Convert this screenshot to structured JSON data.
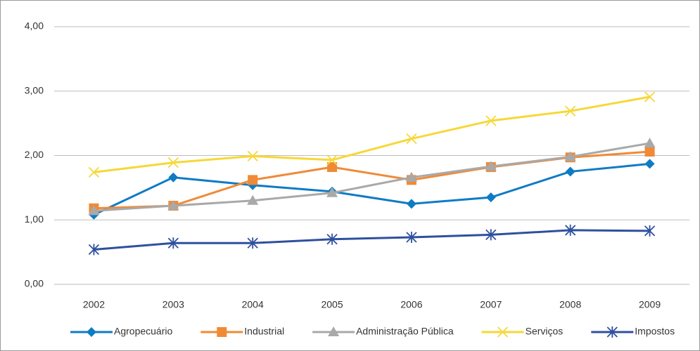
{
  "chart_data": {
    "type": "line",
    "categories": [
      "2002",
      "2003",
      "2004",
      "2005",
      "2006",
      "2007",
      "2008",
      "2009"
    ],
    "series": [
      {
        "name": "Agropecuário",
        "color": "#0f7bc4",
        "marker": "diamond",
        "values": [
          1.08,
          1.66,
          1.54,
          1.44,
          1.25,
          1.35,
          1.75,
          1.87
        ]
      },
      {
        "name": "Industrial",
        "color": "#f08a36",
        "marker": "square",
        "values": [
          1.18,
          1.22,
          1.62,
          1.82,
          1.62,
          1.82,
          1.97,
          2.06
        ]
      },
      {
        "name": "Administração Pública",
        "color": "#a9a9a9",
        "marker": "triangle",
        "values": [
          1.14,
          1.22,
          1.3,
          1.42,
          1.66,
          1.83,
          1.98,
          2.19
        ]
      },
      {
        "name": "Serviços",
        "color": "#f6d837",
        "marker": "x",
        "values": [
          1.74,
          1.89,
          1.99,
          1.93,
          2.26,
          2.54,
          2.69,
          2.91
        ]
      },
      {
        "name": "Impostos",
        "color": "#2e509e",
        "marker": "star",
        "values": [
          0.54,
          0.64,
          0.64,
          0.7,
          0.73,
          0.77,
          0.84,
          0.83
        ]
      }
    ],
    "ylim": [
      0,
      4
    ],
    "yticks": [
      {
        "value": 0,
        "label": "0,00"
      },
      {
        "value": 1,
        "label": "1,00"
      },
      {
        "value": 2,
        "label": "2,00"
      },
      {
        "value": 3,
        "label": "3,00"
      },
      {
        "value": 4,
        "label": "4,00"
      }
    ],
    "grid": true,
    "legend": "bottom"
  }
}
